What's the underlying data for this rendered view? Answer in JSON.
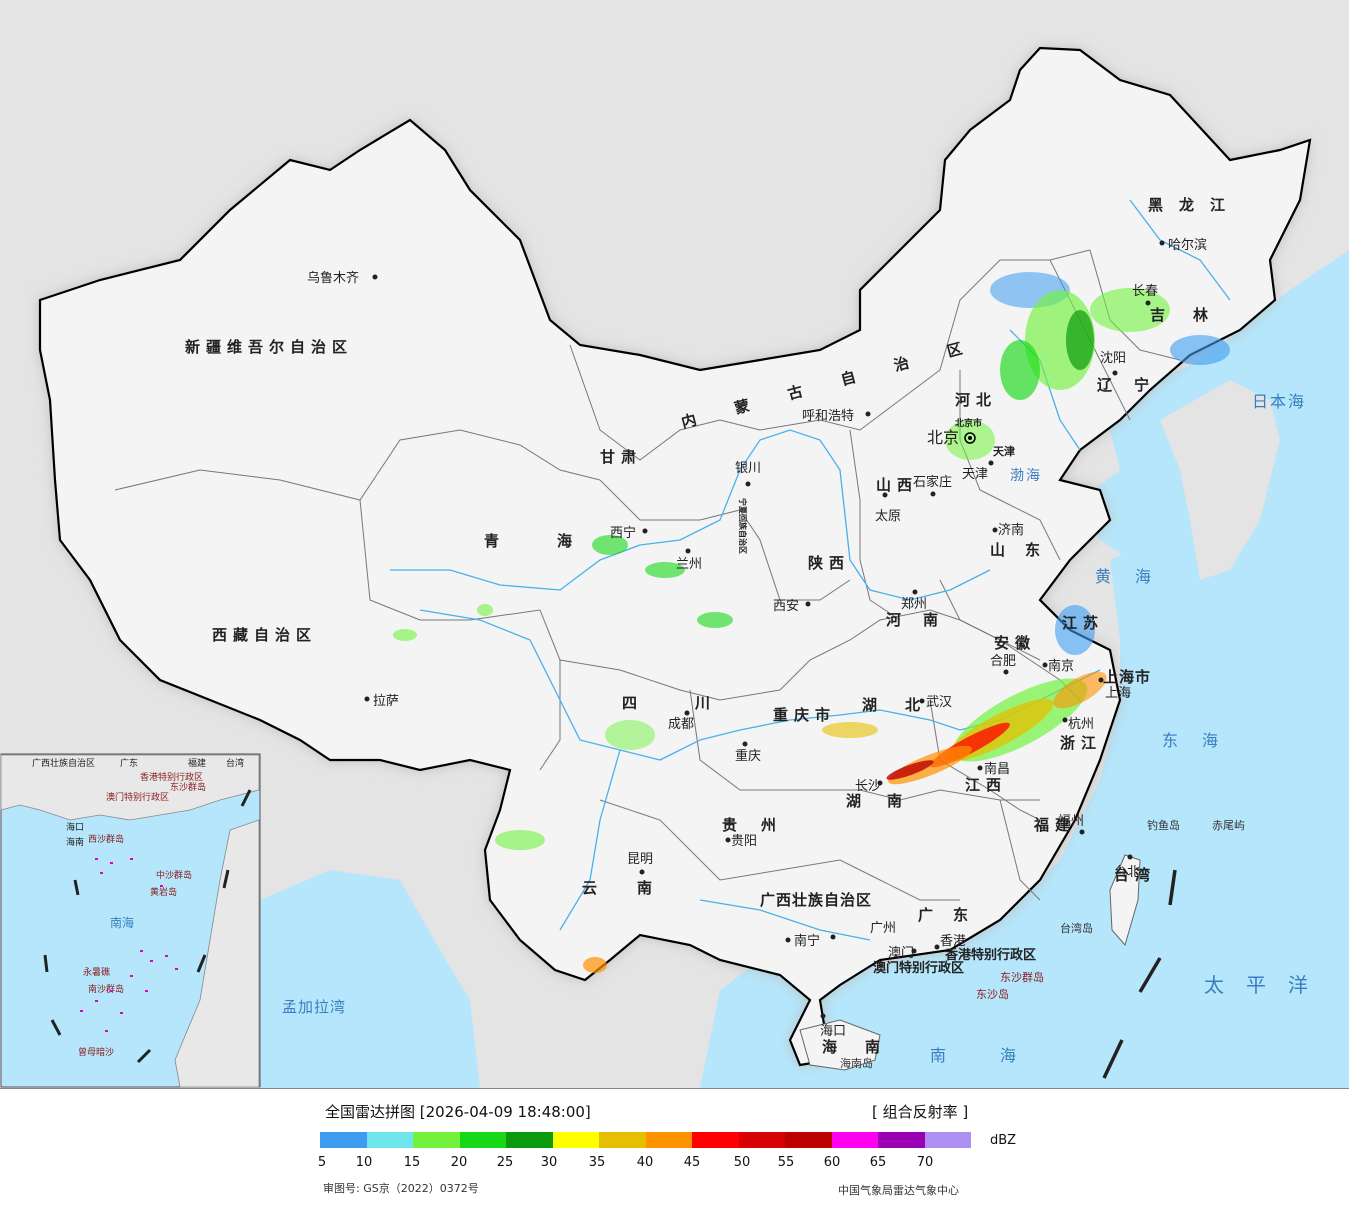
{
  "map": {
    "provinces": [
      {
        "name": "新疆维吾尔自治区",
        "id": "xinjiang"
      },
      {
        "name": "西藏自治区",
        "id": "xizang"
      },
      {
        "name": "青海",
        "id": "qinghai"
      },
      {
        "name": "甘肃",
        "id": "gansu"
      },
      {
        "name": "内蒙古自治区",
        "id": "neimenggu"
      },
      {
        "name": "黑龙江",
        "id": "heilongjiang"
      },
      {
        "name": "吉林",
        "id": "jilin"
      },
      {
        "name": "辽宁",
        "id": "liaoning"
      },
      {
        "name": "河北",
        "id": "hebei"
      },
      {
        "name": "山西",
        "id": "shanxi"
      },
      {
        "name": "山东",
        "id": "shandong"
      },
      {
        "name": "陕西",
        "id": "shaanxi"
      },
      {
        "name": "河南",
        "id": "henan"
      },
      {
        "name": "江苏",
        "id": "jiangsu"
      },
      {
        "name": "安徽",
        "id": "anhui"
      },
      {
        "name": "上海市",
        "id": "shanghai"
      },
      {
        "name": "四川",
        "id": "sichuan"
      },
      {
        "name": "重庆市",
        "id": "chongqing"
      },
      {
        "name": "湖北",
        "id": "hubei"
      },
      {
        "name": "浙江",
        "id": "zhejiang"
      },
      {
        "name": "湖南",
        "id": "hunan"
      },
      {
        "name": "江西",
        "id": "jiangxi"
      },
      {
        "name": "贵州",
        "id": "guizhou"
      },
      {
        "name": "福建",
        "id": "fujian"
      },
      {
        "name": "云南",
        "id": "yunnan"
      },
      {
        "name": "广西壮族自治区",
        "id": "guangxi"
      },
      {
        "name": "广东",
        "id": "guangdong"
      },
      {
        "name": "台湾",
        "id": "taiwan"
      },
      {
        "name": "海南",
        "id": "hainan"
      },
      {
        "name": "宁夏回族自治区",
        "id": "ningxia"
      },
      {
        "name": "北京市",
        "id": "beijing"
      },
      {
        "name": "天津",
        "id": "tianjin"
      }
    ],
    "cities": [
      "乌鲁木齐",
      "拉萨",
      "西宁",
      "兰州",
      "银川",
      "呼和浩特",
      "哈尔滨",
      "长春",
      "沈阳",
      "北京",
      "天津",
      "石家庄",
      "太原",
      "济南",
      "西安",
      "郑州",
      "合肥",
      "南京",
      "上海",
      "杭州",
      "武汉",
      "成都",
      "重庆",
      "贵阳",
      "昆明",
      "长沙",
      "南昌",
      "福州",
      "台北",
      "南宁",
      "广州",
      "香港",
      "澳门",
      "海口"
    ],
    "sar_labels": [
      "香港特别行政区",
      "澳门特别行政区"
    ],
    "seas": [
      "渤海",
      "黄海",
      "东海",
      "日本海",
      "太平洋",
      "南海",
      "孟加拉湾"
    ],
    "islands": [
      "钓鱼岛",
      "赤尾屿",
      "台湾岛",
      "东沙群岛",
      "东沙岛",
      "海南岛"
    ],
    "inset": {
      "labels": [
        "广西壮族自治区",
        "广东",
        "福建",
        "台湾",
        "海口",
        "香港特别行政区",
        "澳门特别行政区",
        "海南",
        "西沙群岛",
        "东沙群岛",
        "中沙群岛",
        "黄岩岛",
        "南海",
        "南沙群岛",
        "永暑礁",
        "曾母暗沙"
      ]
    }
  },
  "legend": {
    "title": "全国雷达拼图 [2026-04-09 18:48:00]",
    "product": "[ 组合反射率 ]",
    "unit": "dBZ",
    "ticks": [
      "5",
      "10",
      "15",
      "20",
      "25",
      "30",
      "35",
      "40",
      "45",
      "50",
      "55",
      "60",
      "65",
      "70"
    ],
    "colors": [
      "#3d9cf0",
      "#6ee6ee",
      "#72f23d",
      "#17d817",
      "#0b9a0b",
      "#ffff00",
      "#e6c000",
      "#ff9200",
      "#ff0000",
      "#d80000",
      "#bc0000",
      "#ff00f0",
      "#9a00b4",
      "#ac8ff0"
    ],
    "review_no": "审图号: GS京（2022）0372号",
    "source": "中国气象局雷达气象中心"
  }
}
